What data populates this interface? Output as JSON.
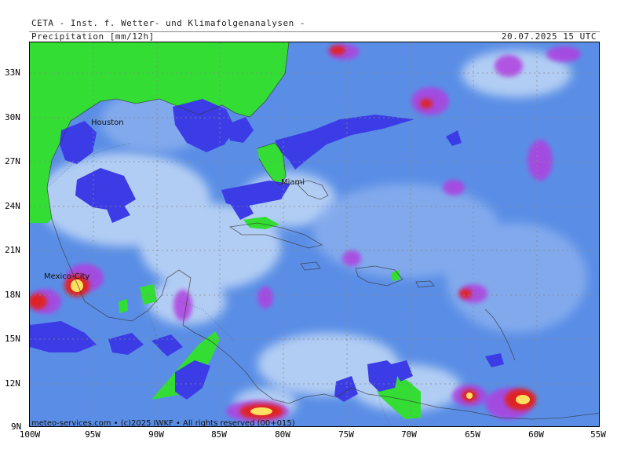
{
  "header": {
    "title": "CETA - Inst. f. Wetter- und Klimafolgenanalysen -",
    "parameter": "Precipitation [mm/12h]",
    "valid_time": "20.07.2025 15 UTC"
  },
  "footer": {
    "copyright": "meteo-services.com • (c)2025 IWKF • All rights reserved (00+015)"
  },
  "axes": {
    "lat_labels": [
      "33N",
      "30N",
      "27N",
      "24N",
      "21N",
      "18N",
      "15N",
      "12N",
      "9N"
    ],
    "lon_labels": [
      "100W",
      "95W",
      "90W",
      "85W",
      "80W",
      "75W",
      "70W",
      "65W",
      "60W",
      "55W"
    ]
  },
  "cities": [
    {
      "name": "Houston"
    },
    {
      "name": "Miami"
    },
    {
      "name": "Mexico-City"
    }
  ],
  "colors": {
    "land": "#33dd33",
    "ocean_base": "#5a8ee6",
    "light": "#bcd4f5",
    "dark_blue": "#3c3ce6",
    "magenta": "#b040e0",
    "red": "#e02020",
    "yellow": "#ffe060"
  }
}
